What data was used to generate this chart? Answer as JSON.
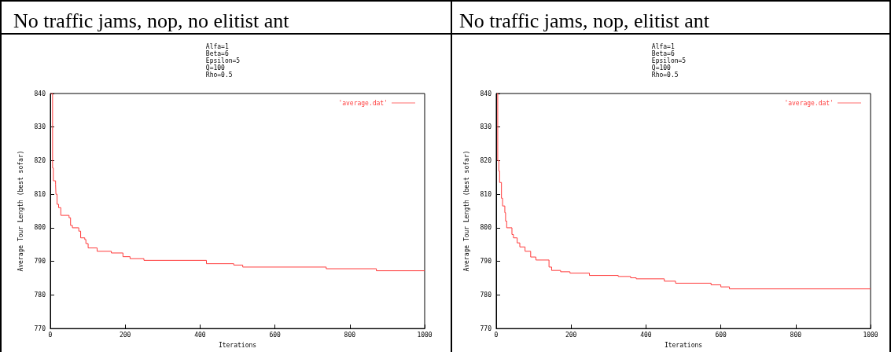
{
  "chart_data": [
    {
      "type": "step",
      "title": "No traffic jams, nop, no elitist ant",
      "subtitle": "Alfa=1\nBeta=6\nEpsilon=5\nQ=100\nRho=0.5",
      "xlabel": "Iterations",
      "ylabel": "Average Tour Length (best sofar)",
      "xlim": [
        0,
        1000
      ],
      "xticks": [
        0,
        200,
        400,
        600,
        800,
        1000
      ],
      "ylim": [
        770,
        840
      ],
      "yticks": [
        770,
        780,
        790,
        800,
        810,
        820,
        830,
        840
      ],
      "grid": false,
      "legend": "top right",
      "marker": "none",
      "series": [
        {
          "name": "'average.dat'",
          "color": "#ff3b3b",
          "x": [
            1,
            6,
            8,
            14,
            15,
            18,
            22,
            28,
            50,
            54,
            59,
            76,
            81,
            92,
            95,
            101,
            125,
            163,
            194,
            213,
            250,
            417,
            490,
            514,
            737,
            871,
            1000
          ],
          "values": [
            840,
            817.8,
            814,
            813,
            810,
            807,
            806,
            803.7,
            803,
            800.7,
            800,
            799,
            797,
            796.5,
            795.3,
            794,
            793,
            792.5,
            791.4,
            790.8,
            790.3,
            789.3,
            788.9,
            788.3,
            787.8,
            787.2,
            787.2
          ]
        }
      ]
    },
    {
      "type": "step",
      "title": "No traffic jams, nop, elitist ant",
      "subtitle": "Alfa=1\nBeta=6\nEpsilon=5\nQ=100\nRho=0.5",
      "xlabel": "Iterations",
      "ylabel": "Average Tour Length (best sofar)",
      "xlim": [
        0,
        1000
      ],
      "xticks": [
        0,
        200,
        400,
        600,
        800,
        1000
      ],
      "ylim": [
        770,
        840
      ],
      "yticks": [
        770,
        780,
        790,
        800,
        810,
        820,
        830,
        840
      ],
      "grid": false,
      "legend": "top right",
      "marker": "none",
      "series": [
        {
          "name": "'average.dat'",
          "color": "#ff3b3b",
          "x": [
            2,
            4,
            7,
            9,
            14,
            17,
            23,
            25,
            28,
            42,
            46,
            56,
            63,
            77,
            92,
            106,
            141,
            148,
            172,
            197,
            249,
            326,
            359,
            374,
            449,
            479,
            574,
            600,
            623,
            1000
          ],
          "values": [
            840,
            820,
            816.9,
            813.5,
            808.8,
            806.5,
            804.5,
            802,
            800,
            798,
            797,
            795.5,
            794.3,
            793,
            791.3,
            790.4,
            788.3,
            787.3,
            786.9,
            786.5,
            785.8,
            785.5,
            785.1,
            784.8,
            784.1,
            783.5,
            783,
            782.4,
            781.8,
            781.8
          ]
        }
      ]
    }
  ]
}
